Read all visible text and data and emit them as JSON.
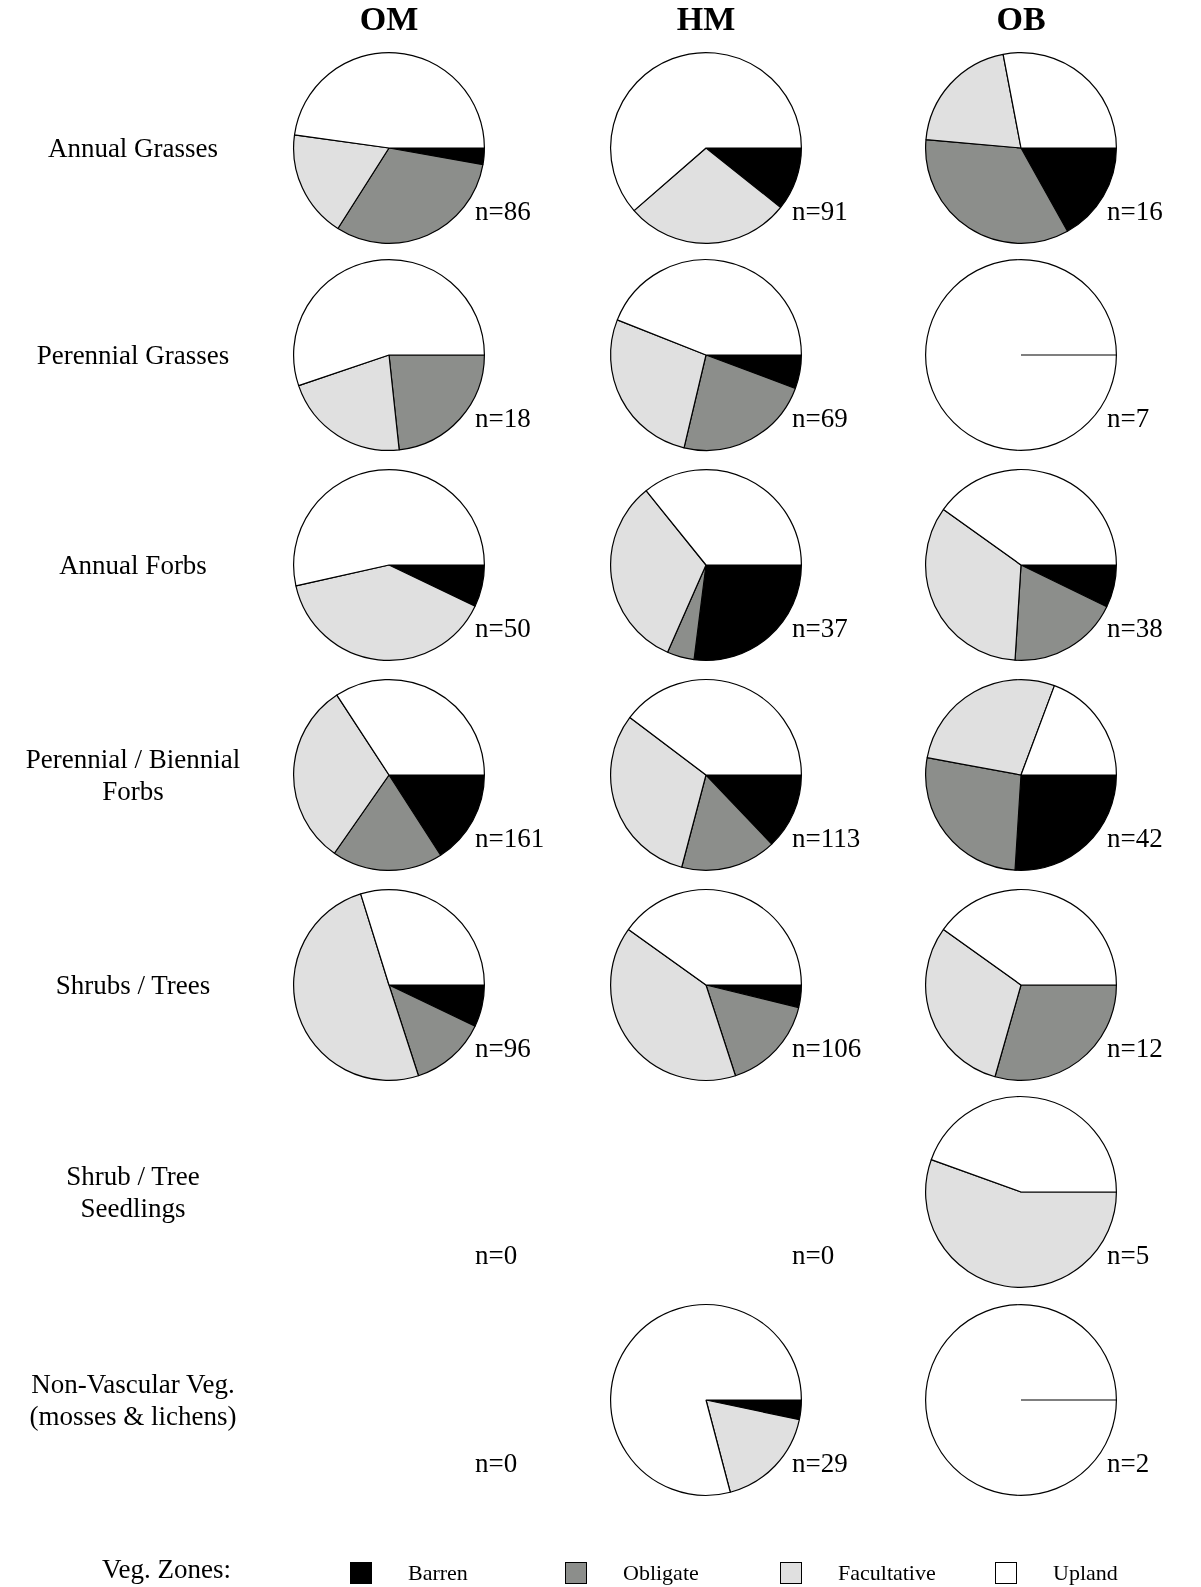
{
  "chart_data": [
    {
      "type": "pie",
      "title": "OM",
      "ylabel": "Annual Grasses",
      "categories": [
        "Barren",
        "Obligate",
        "Facultative",
        "Upland"
      ],
      "values": [
        2.8,
        31.2,
        18.2,
        47.8
      ],
      "colors": [
        "#000000",
        "#8c8e8b",
        "#e0e0e0",
        "#ffffff"
      ],
      "annotations": [
        "n=86"
      ],
      "legend": "bottom",
      "legend_title": "Veg. Zones:"
    },
    {
      "type": "pie",
      "title": "HM",
      "values": [
        10.7,
        0,
        27.9,
        61.4
      ],
      "colors": [
        "#000000",
        "#8c8e8b",
        "#e0e0e0",
        "#ffffff"
      ],
      "annotations": [
        "n=91"
      ]
    },
    {
      "type": "pie",
      "title": "OB",
      "values": [
        16.9,
        34.5,
        20.6,
        28.0
      ],
      "colors": [
        "#000000",
        "#8c8e8b",
        "#e0e0e0",
        "#ffffff"
      ],
      "annotations": [
        "n=16"
      ]
    },
    {
      "type": "pie",
      "ylabel": "Perennial Grasses",
      "values": [
        0,
        23.3,
        21.5,
        55.2
      ],
      "colors": [
        "#000000",
        "#8c8e8b",
        "#e0e0e0",
        "#ffffff"
      ],
      "annotations": [
        "n=18"
      ]
    },
    {
      "type": "pie",
      "values": [
        5.7,
        23.0,
        27.3,
        44.0
      ],
      "colors": [
        "#000000",
        "#8c8e8b",
        "#e0e0e0",
        "#ffffff"
      ],
      "annotations": [
        "n=69"
      ]
    },
    {
      "type": "pie",
      "values": [
        0,
        0,
        0,
        100
      ],
      "colors": [
        "#000000",
        "#8c8e8b",
        "#e0e0e0",
        "#ffffff"
      ],
      "annotations": [
        "n=7"
      ]
    },
    {
      "type": "pie",
      "ylabel": "Annual Forbs",
      "values": [
        7.1,
        0,
        39.4,
        53.5
      ],
      "colors": [
        "#000000",
        "#8c8e8b",
        "#e0e0e0",
        "#ffffff"
      ],
      "annotations": [
        "n=50"
      ]
    },
    {
      "type": "pie",
      "values": [
        27.0,
        4.6,
        32.6,
        35.8
      ],
      "colors": [
        "#000000",
        "#8c8e8b",
        "#e0e0e0",
        "#ffffff"
      ],
      "annotations": [
        "n=37"
      ]
    },
    {
      "type": "pie",
      "values": [
        7.2,
        18.8,
        33.9,
        40.1
      ],
      "colors": [
        "#000000",
        "#8c8e8b",
        "#e0e0e0",
        "#ffffff"
      ],
      "annotations": [
        "n=38"
      ]
    },
    {
      "type": "pie",
      "ylabel": "Perennial / Biennial\nForbs",
      "values": [
        15.9,
        18.8,
        31.1,
        34.2
      ],
      "colors": [
        "#000000",
        "#8c8e8b",
        "#e0e0e0",
        "#ffffff"
      ],
      "annotations": [
        "n=161"
      ]
    },
    {
      "type": "pie",
      "values": [
        12.9,
        16.2,
        31.2,
        39.7
      ],
      "colors": [
        "#000000",
        "#8c8e8b",
        "#e0e0e0",
        "#ffffff"
      ],
      "annotations": [
        "n=113"
      ]
    },
    {
      "type": "pie",
      "values": [
        26.0,
        26.9,
        27.8,
        19.3
      ],
      "colors": [
        "#000000",
        "#8c8e8b",
        "#e0e0e0",
        "#ffffff"
      ],
      "annotations": [
        "n=42"
      ]
    },
    {
      "type": "pie",
      "ylabel": "Shrubs / Trees",
      "values": [
        7.1,
        12.9,
        50.2,
        29.8
      ],
      "colors": [
        "#000000",
        "#8c8e8b",
        "#e0e0e0",
        "#ffffff"
      ],
      "annotations": [
        "n=96"
      ]
    },
    {
      "type": "pie",
      "values": [
        3.8,
        16.2,
        39.9,
        40.1
      ],
      "colors": [
        "#000000",
        "#8c8e8b",
        "#e0e0e0",
        "#ffffff"
      ],
      "annotations": [
        "n=106"
      ]
    },
    {
      "type": "pie",
      "values": [
        0,
        29.4,
        30.5,
        40.1
      ],
      "colors": [
        "#000000",
        "#8c8e8b",
        "#e0e0e0",
        "#ffffff"
      ],
      "annotations": [
        "n=12"
      ]
    },
    {
      "type": "other",
      "ylabel": "Shrub / Tree\nSeedlings",
      "annotations": [
        "n=0"
      ]
    },
    {
      "type": "other",
      "annotations": [
        "n=0"
      ]
    },
    {
      "type": "pie",
      "values": [
        0,
        0,
        55.5,
        44.5
      ],
      "colors": [
        "#000000",
        "#8c8e8b",
        "#e0e0e0",
        "#ffffff"
      ],
      "annotations": [
        "n=5"
      ]
    },
    {
      "type": "other",
      "ylabel": "Non-Vascular Veg.\n(mosses & lichens)",
      "annotations": [
        "n=0"
      ]
    },
    {
      "type": "pie",
      "values": [
        3.3,
        0,
        17.6,
        79.1
      ],
      "colors": [
        "#000000",
        "#8c8e8b",
        "#e0e0e0",
        "#ffffff"
      ],
      "annotations": [
        "n=29"
      ]
    },
    {
      "type": "pie",
      "values": [
        0,
        0,
        0,
        100
      ],
      "colors": [
        "#000000",
        "#8c8e8b",
        "#e0e0e0",
        "#ffffff"
      ],
      "annotations": [
        "n=2"
      ]
    }
  ]
}
